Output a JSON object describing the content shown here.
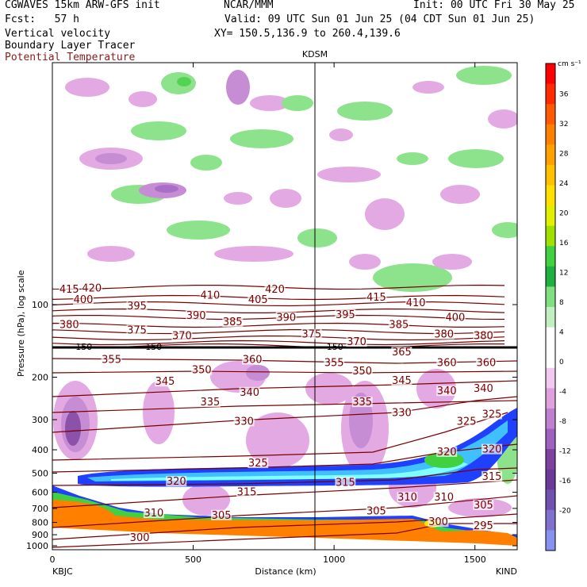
{
  "header": {
    "model": "CGWAVES 15km ARW-GFS init",
    "org": "NCAR/MMM",
    "init": "Init: 00 UTC Fri 30 May 25",
    "fcst": "Fcst:   57 h",
    "valid": "Valid: 09 UTC Sun 01 Jun 25 (04 CDT Sun 01 Jun 25)",
    "field1": "Vertical velocity",
    "xy": "XY= 150.5,136.9 to 260.4,139.6",
    "field2": "Boundary Layer Tracer",
    "field3": "Potential Temperature",
    "field3_color": "#8b1a1a"
  },
  "chart_data": {
    "type": "cross-section",
    "xlabel": "Distance (km)",
    "ylabel": "Pressure (hPa), log scale",
    "xlim": [
      0,
      1650
    ],
    "xticks": [
      "0",
      "500",
      "1000",
      "1500"
    ],
    "yticks": [
      "100",
      "200",
      "300",
      "400",
      "500",
      "600",
      "700",
      "800",
      "900",
      "1000"
    ],
    "ylog": true,
    "left_endpoint": "KBJC",
    "right_endpoint": "KIND",
    "mid_station": "KDSM",
    "mid_station_km": 940,
    "level_150": "150",
    "colorbar": {
      "units": "cm s⁻¹",
      "labels": [
        "36",
        "32",
        "28",
        "24",
        "20",
        "16",
        "12",
        "8",
        "4",
        "0",
        "-4",
        "-8",
        "-12",
        "-16",
        "-20"
      ],
      "colors": [
        "#ff0000",
        "#ff2a00",
        "#ff5a00",
        "#ff8000",
        "#ffa000",
        "#ffc000",
        "#ffe000",
        "#e0f000",
        "#a0e000",
        "#40d040",
        "#20b040",
        "#80e080",
        "#c0f0c0",
        "#ffffff",
        "#ffffff",
        "#f0c8f0",
        "#e0a0e0",
        "#c080d0",
        "#a060c0",
        "#8040a0",
        "#6a3a9a",
        "#7050b0",
        "#8070d0",
        "#8890f0"
      ]
    },
    "theta_labels": [
      {
        "text": "420",
        "x": 140,
        "p": 87
      },
      {
        "text": "420",
        "x": 790,
        "p": 88
      },
      {
        "text": "415",
        "x": 60,
        "p": 88
      },
      {
        "text": "415",
        "x": 1150,
        "p": 95
      },
      {
        "text": "410",
        "x": 560,
        "p": 93
      },
      {
        "text": "410",
        "x": 1290,
        "p": 100
      },
      {
        "text": "405",
        "x": 730,
        "p": 97
      },
      {
        "text": "400",
        "x": 110,
        "p": 97
      },
      {
        "text": "400",
        "x": 1430,
        "p": 115
      },
      {
        "text": "395",
        "x": 300,
        "p": 103
      },
      {
        "text": "395",
        "x": 1040,
        "p": 112
      },
      {
        "text": "390",
        "x": 510,
        "p": 113
      },
      {
        "text": "390",
        "x": 830,
        "p": 115
      },
      {
        "text": "385",
        "x": 640,
        "p": 120
      },
      {
        "text": "385",
        "x": 1230,
        "p": 123
      },
      {
        "text": "380",
        "x": 60,
        "p": 123
      },
      {
        "text": "380",
        "x": 1390,
        "p": 135
      },
      {
        "text": "380",
        "x": 1530,
        "p": 137
      },
      {
        "text": "375",
        "x": 300,
        "p": 130
      },
      {
        "text": "375",
        "x": 920,
        "p": 135
      },
      {
        "text": "370",
        "x": 460,
        "p": 137
      },
      {
        "text": "370",
        "x": 1080,
        "p": 145
      },
      {
        "text": "365",
        "x": 1240,
        "p": 160
      },
      {
        "text": "360",
        "x": 710,
        "p": 172
      },
      {
        "text": "360",
        "x": 1400,
        "p": 177
      },
      {
        "text": "360",
        "x": 1540,
        "p": 177
      },
      {
        "text": "355",
        "x": 210,
        "p": 172
      },
      {
        "text": "355",
        "x": 1000,
        "p": 177
      },
      {
        "text": "350",
        "x": 530,
        "p": 190
      },
      {
        "text": "350",
        "x": 1100,
        "p": 192
      },
      {
        "text": "345",
        "x": 400,
        "p": 212
      },
      {
        "text": "345",
        "x": 1240,
        "p": 210
      },
      {
        "text": "340",
        "x": 700,
        "p": 235
      },
      {
        "text": "340",
        "x": 1400,
        "p": 232
      },
      {
        "text": "340",
        "x": 1530,
        "p": 227
      },
      {
        "text": "335",
        "x": 560,
        "p": 258
      },
      {
        "text": "335",
        "x": 1100,
        "p": 258
      },
      {
        "text": "330",
        "x": 680,
        "p": 310
      },
      {
        "text": "330",
        "x": 1240,
        "p": 285
      },
      {
        "text": "325",
        "x": 1470,
        "p": 310
      },
      {
        "text": "325",
        "x": 1560,
        "p": 290
      },
      {
        "text": "325",
        "x": 730,
        "p": 462
      },
      {
        "text": "320",
        "x": 1400,
        "p": 415
      },
      {
        "text": "320",
        "x": 1560,
        "p": 405
      },
      {
        "text": "320",
        "x": 440,
        "p": 550
      },
      {
        "text": "315",
        "x": 1040,
        "p": 555
      },
      {
        "text": "315",
        "x": 1560,
        "p": 525
      },
      {
        "text": "315",
        "x": 690,
        "p": 610
      },
      {
        "text": "310",
        "x": 1260,
        "p": 640
      },
      {
        "text": "310",
        "x": 1390,
        "p": 640
      },
      {
        "text": "310",
        "x": 360,
        "p": 745
      },
      {
        "text": "305",
        "x": 1150,
        "p": 730
      },
      {
        "text": "305",
        "x": 1530,
        "p": 690
      },
      {
        "text": "305",
        "x": 600,
        "p": 760
      },
      {
        "text": "300",
        "x": 310,
        "p": 940
      },
      {
        "text": "300",
        "x": 1370,
        "p": 810
      },
      {
        "text": "295",
        "x": 1530,
        "p": 840
      }
    ]
  }
}
